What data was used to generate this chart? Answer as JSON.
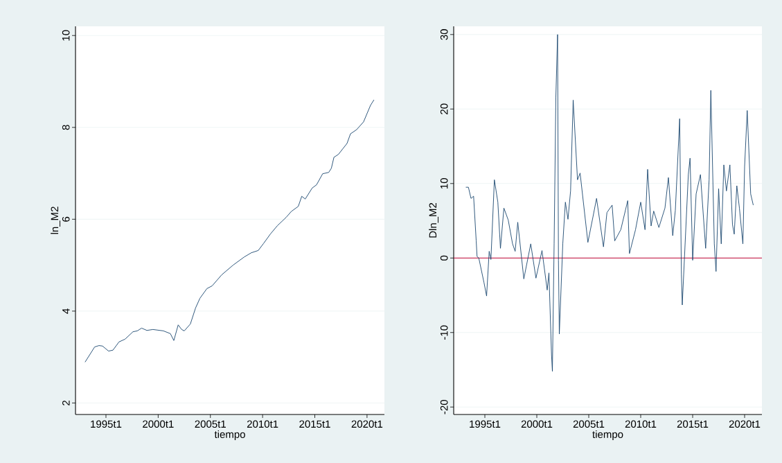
{
  "chart_data": [
    {
      "type": "line",
      "xlabel": "tiempo",
      "ylabel": "ln_M2",
      "xlim": [
        "1992-02",
        "2021-09"
      ],
      "ylim": [
        1.75,
        10.2
      ],
      "grid": "y",
      "xticks": [
        {
          "value": "1995-01",
          "label": "1995t1"
        },
        {
          "value": "2000-01",
          "label": "2000t1"
        },
        {
          "value": "2005-01",
          "label": "2005t1"
        },
        {
          "value": "2010-01",
          "label": "2010t1"
        },
        {
          "value": "2015-01",
          "label": "2015t1"
        },
        {
          "value": "2020-01",
          "label": "2020t1"
        }
      ],
      "yticks": [
        2,
        4,
        6,
        8,
        10
      ],
      "x": [
        "1993-01",
        "1993-12",
        "1994-05",
        "1994-09",
        "1995-04",
        "1995-09",
        "1996-04",
        "1996-11",
        "1997-08",
        "1998-01",
        "1998-06",
        "1998-12",
        "1999-07",
        "2000-07",
        "2001-03",
        "2001-07",
        "2001-12",
        "2002-04",
        "2002-07",
        "2003-02",
        "2003-08",
        "2004-01",
        "2004-09",
        "2005-03",
        "2006-02",
        "2007-03",
        "2008-04",
        "2008-12",
        "2009-08",
        "2010-02",
        "2010-10",
        "2011-06",
        "2012-04",
        "2012-10",
        "2013-06",
        "2013-10",
        "2014-02",
        "2014-10",
        "2015-03",
        "2015-10",
        "2016-05",
        "2016-08",
        "2016-11",
        "2017-04",
        "2017-09",
        "2018-02",
        "2018-06",
        "2019-01",
        "2019-09",
        "2020-01",
        "2020-05",
        "2020-09"
      ],
      "series": [
        {
          "color": "#1a476f",
          "values": [
            2.89,
            3.22,
            3.25,
            3.24,
            3.13,
            3.15,
            3.33,
            3.39,
            3.55,
            3.57,
            3.63,
            3.58,
            3.6,
            3.57,
            3.51,
            3.36,
            3.7,
            3.6,
            3.57,
            3.72,
            4.07,
            4.28,
            4.49,
            4.55,
            4.79,
            5.0,
            5.18,
            5.27,
            5.32,
            5.47,
            5.68,
            5.86,
            6.04,
            6.17,
            6.28,
            6.5,
            6.44,
            6.68,
            6.75,
            6.99,
            7.02,
            7.11,
            7.35,
            7.41,
            7.53,
            7.65,
            7.86,
            7.95,
            8.12,
            8.3,
            8.48,
            8.6
          ]
        }
      ]
    },
    {
      "type": "line",
      "xlabel": "tiempo",
      "ylabel": "Dln_M2",
      "xlim": [
        "1992-01",
        "2021-09"
      ],
      "ylim": [
        -21,
        31.1
      ],
      "grid": "y",
      "xticks": [
        {
          "value": "1995-01",
          "label": "1995t1"
        },
        {
          "value": "2000-01",
          "label": "2000t1"
        },
        {
          "value": "2005-01",
          "label": "2005t1"
        },
        {
          "value": "2010-01",
          "label": "2010t1"
        },
        {
          "value": "2015-01",
          "label": "2015t1"
        },
        {
          "value": "2020-01",
          "label": "2020t1"
        }
      ],
      "yticks": [
        -20,
        -10,
        0,
        10,
        20,
        30
      ],
      "ref_lines": [
        {
          "axis": "y",
          "value": 0,
          "color": "#c10534"
        }
      ],
      "x": [
        "1993-03",
        "1993-06",
        "1993-09",
        "1993-12",
        "1994-03",
        "1994-04",
        "1994-06",
        "1994-12",
        "1995-03",
        "1995-06",
        "1995-08",
        "1995-12",
        "1996-04",
        "1996-07",
        "1996-11",
        "1997-04",
        "1997-09",
        "1997-12",
        "1998-03",
        "1998-10",
        "1999-06",
        "1999-12",
        "2000-07",
        "2001-01",
        "2001-03",
        "2001-06",
        "2001-07",
        "2001-09",
        "2001-11",
        "2002-01",
        "2002-02",
        "2002-03",
        "2002-07",
        "2002-10",
        "2003-01",
        "2003-04",
        "2003-07",
        "2003-12",
        "2004-03",
        "2004-12",
        "2005-06",
        "2005-10",
        "2006-06",
        "2006-10",
        "2007-04",
        "2007-07",
        "2008-02",
        "2008-10",
        "2008-12",
        "2009-07",
        "2010-01",
        "2010-06",
        "2010-09",
        "2011-01",
        "2011-04",
        "2011-10",
        "2012-05",
        "2012-09",
        "2013-02",
        "2013-05",
        "2013-10",
        "2013-12",
        "2014-01",
        "2014-08",
        "2014-10",
        "2015-01",
        "2015-05",
        "2015-10",
        "2016-04",
        "2016-08",
        "2016-10",
        "2017-02",
        "2017-04",
        "2017-07",
        "2017-10",
        "2018-01",
        "2018-04",
        "2018-08",
        "2018-11",
        "2019-01",
        "2019-04",
        "2019-07",
        "2019-11",
        "2020-01",
        "2020-04",
        "2020-08",
        "2020-11"
      ],
      "series": [
        {
          "color": "#1a476f",
          "values": [
            9.5,
            9.5,
            8.0,
            8.3,
            2.3,
            0.2,
            0.0,
            -3.3,
            -5.1,
            0.9,
            -0.2,
            10.5,
            7.5,
            1.3,
            6.7,
            5.1,
            1.9,
            0.9,
            4.8,
            -2.8,
            1.9,
            -2.7,
            1.0,
            -4.3,
            -2.0,
            -13.0,
            -15.2,
            1.9,
            21.6,
            30.0,
            -0.3,
            -10.2,
            1.9,
            7.5,
            5.2,
            9.0,
            21.2,
            10.5,
            11.4,
            2.1,
            5.6,
            8.0,
            1.5,
            6.1,
            7.1,
            2.3,
            3.8,
            7.7,
            0.6,
            3.8,
            7.5,
            3.8,
            11.9,
            4.3,
            6.3,
            4.1,
            6.7,
            10.8,
            3.0,
            6.4,
            18.7,
            -2.2,
            -6.3,
            11.2,
            13.4,
            -0.3,
            8.6,
            11.2,
            1.3,
            10.5,
            22.5,
            1.9,
            -1.8,
            9.3,
            1.9,
            12.5,
            9.0,
            12.5,
            4.5,
            3.2,
            9.7,
            6.7,
            1.9,
            12.3,
            19.8,
            8.6,
            7.1
          ]
        }
      ]
    }
  ]
}
